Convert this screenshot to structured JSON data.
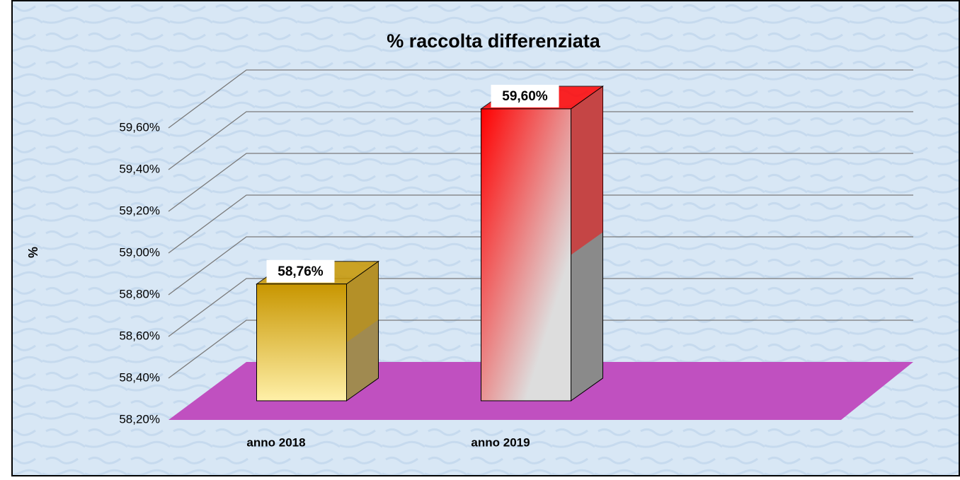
{
  "chart_data": {
    "type": "bar3d",
    "title": "% raccolta differenziata",
    "y_label": "%",
    "categories": [
      "anno 2018",
      "anno 2019"
    ],
    "values": [
      58.76,
      59.6
    ],
    "value_labels": [
      "58,76%",
      "59,60%"
    ],
    "colors": [
      "#c89600",
      "#ff0000"
    ],
    "ylim": [
      58.2,
      59.6
    ],
    "yticks": [
      {
        "value": 58.2,
        "label": "58,20%"
      },
      {
        "value": 58.4,
        "label": "58,40%"
      },
      {
        "value": 58.6,
        "label": "58,60%"
      },
      {
        "value": 58.8,
        "label": "58,80%"
      },
      {
        "value": 59.0,
        "label": "59,00%"
      },
      {
        "value": 59.2,
        "label": "59,20%"
      },
      {
        "value": 59.4,
        "label": "59,40%"
      },
      {
        "value": 59.6,
        "label": "59,60%"
      }
    ],
    "grid": true,
    "floor_color": "#c050c0"
  }
}
